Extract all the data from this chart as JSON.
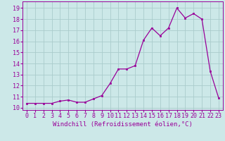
{
  "x": [
    0,
    1,
    2,
    3,
    4,
    5,
    6,
    7,
    8,
    9,
    10,
    11,
    12,
    13,
    14,
    15,
    16,
    17,
    18,
    19,
    20,
    21,
    22,
    23
  ],
  "y": [
    10.4,
    10.4,
    10.4,
    10.4,
    10.6,
    10.7,
    10.5,
    10.5,
    10.8,
    11.1,
    12.2,
    13.5,
    13.5,
    13.8,
    16.1,
    17.2,
    16.5,
    17.2,
    19.0,
    18.1,
    18.5,
    18.0,
    13.3,
    10.9
  ],
  "line_color": "#990099",
  "marker": "s",
  "marker_size": 2.0,
  "bg_color": "#cce8e8",
  "grid_color": "#aacccc",
  "xlabel": "Windchill (Refroidissement éolien,°C)",
  "xlabel_fontsize": 6.5,
  "ylabel_ticks": [
    10,
    11,
    12,
    13,
    14,
    15,
    16,
    17,
    18,
    19
  ],
  "xlim": [
    -0.5,
    23.5
  ],
  "ylim": [
    9.8,
    19.6
  ],
  "tick_fontsize": 6.0,
  "font_family": "monospace"
}
